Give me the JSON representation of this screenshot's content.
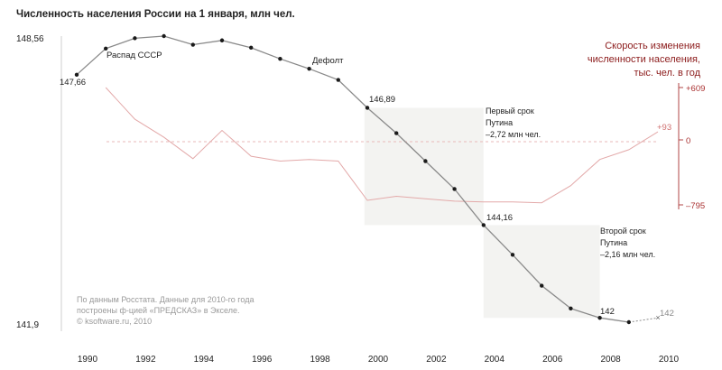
{
  "chart_data": {
    "type": "line",
    "title": "Численность населения России на 1 января, млн чел.",
    "x_range": [
      1990,
      2010
    ],
    "population": {
      "ylim": [
        141.9,
        148.56
      ],
      "x": [
        1990,
        1991,
        1992,
        1993,
        1994,
        1995,
        1996,
        1997,
        1998,
        1999,
        2000,
        2001,
        2002,
        2003,
        2004,
        2005,
        2006,
        2007,
        2008,
        2009,
        2010
      ],
      "values": [
        147.66,
        148.27,
        148.51,
        148.56,
        148.36,
        148.46,
        148.29,
        148.03,
        147.8,
        147.54,
        146.89,
        146.3,
        145.65,
        145.0,
        144.16,
        143.47,
        142.75,
        142.22,
        142.0,
        141.9,
        142.0
      ],
      "last_point_forecast": true,
      "color": "#888888"
    },
    "rate": {
      "label": "Скорость изменения численности населения, тыс. чел. в год",
      "ticks": [
        609,
        0,
        -795
      ],
      "ylim": [
        -795,
        609
      ],
      "x": [
        1991,
        1992,
        1993,
        1994,
        1995,
        1996,
        1997,
        1998,
        1999,
        2000,
        2001,
        2002,
        2003,
        2004,
        2005,
        2006,
        2007,
        2008,
        2009,
        2010
      ],
      "values": [
        609,
        240,
        30,
        -230,
        110,
        -200,
        -260,
        -240,
        -260,
        -740,
        -690,
        -720,
        -750,
        -760,
        -760,
        -770,
        -560,
        -240,
        -120,
        93
      ],
      "color": "#d99090"
    },
    "shaded_periods": [
      [
        1999.9,
        2004
      ],
      [
        2004,
        2008
      ]
    ],
    "xticks": [
      "1990",
      "1992",
      "1994",
      "1996",
      "1998",
      "2000",
      "2002",
      "2004",
      "2006",
      "2008",
      "2010"
    ]
  },
  "labels": {
    "ymax": "148,56",
    "ymin": "141,9",
    "rate_top": "+609",
    "rate_zero": "0",
    "rate_bottom": "–795",
    "rate_last": "+93",
    "rate_title_lines": [
      "Скорость изменения",
      "численности населения,",
      "тыс. чел. в год"
    ],
    "v1990": "147,66",
    "v2000": "146,89",
    "v2004": "144,16",
    "v2008": "142",
    "v2010": "142",
    "ussr": "Распад СССР",
    "default": "Дефолт",
    "term1_lines": [
      "Первый срок",
      "Путина",
      "–2,72 млн чел."
    ],
    "term2_lines": [
      "Второй срок",
      "Путина",
      "–2,16 млн чел."
    ],
    "source_lines": [
      "По данным Росстата. Данные для 2010-го года",
      "построены ф-цией «ПРЕДСКАЗ» в Экселе.",
      "© ksoftware.ru, 2010"
    ]
  }
}
